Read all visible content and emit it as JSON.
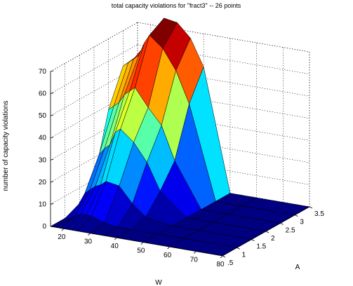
{
  "chart_data": {
    "type": "surface",
    "title": "total capacity violations for \"fract3\" -- 26 points",
    "xlabel": "W",
    "ylabel": "A",
    "zlabel": "number of capacity violations",
    "x_ticks": [
      "20",
      "30",
      "40",
      "50",
      "60",
      "70",
      "80"
    ],
    "y_ticks": [
      ".5",
      "1",
      "1.5",
      "2",
      "2.5",
      "3",
      "3.5"
    ],
    "z_ticks": [
      "0",
      "10",
      "20",
      "30",
      "40",
      "50",
      "60",
      "70"
    ],
    "xlim": [
      15,
      80
    ],
    "ylim": [
      0.5,
      3.5
    ],
    "zlim": [
      0,
      70
    ],
    "grid": true,
    "colormap": "jet",
    "w": [
      15,
      17,
      19,
      21,
      23,
      25,
      30,
      35,
      40,
      50,
      60,
      80
    ],
    "a": [
      0.5,
      1.0,
      1.5,
      2.0,
      2.5,
      3.0,
      3.5
    ],
    "z": [
      [
        0,
        0,
        0,
        0,
        0,
        0,
        0,
        0,
        0,
        0,
        0,
        0
      ],
      [
        0,
        0,
        2,
        3,
        3,
        3,
        1,
        0,
        0,
        0,
        0,
        0
      ],
      [
        3,
        8,
        10,
        12,
        13,
        15,
        14,
        7,
        2,
        0,
        0,
        0
      ],
      [
        10,
        22,
        25,
        27,
        33,
        35,
        30,
        22,
        10,
        0,
        0,
        0
      ],
      [
        38,
        40,
        42,
        46,
        48,
        50,
        42,
        35,
        20,
        0,
        0,
        0
      ],
      [
        54,
        56,
        58,
        60,
        66,
        70,
        65,
        56,
        42,
        0,
        0,
        0
      ],
      [
        55,
        57,
        62,
        63,
        68,
        74,
        73,
        67,
        55,
        0,
        0,
        0
      ]
    ]
  }
}
